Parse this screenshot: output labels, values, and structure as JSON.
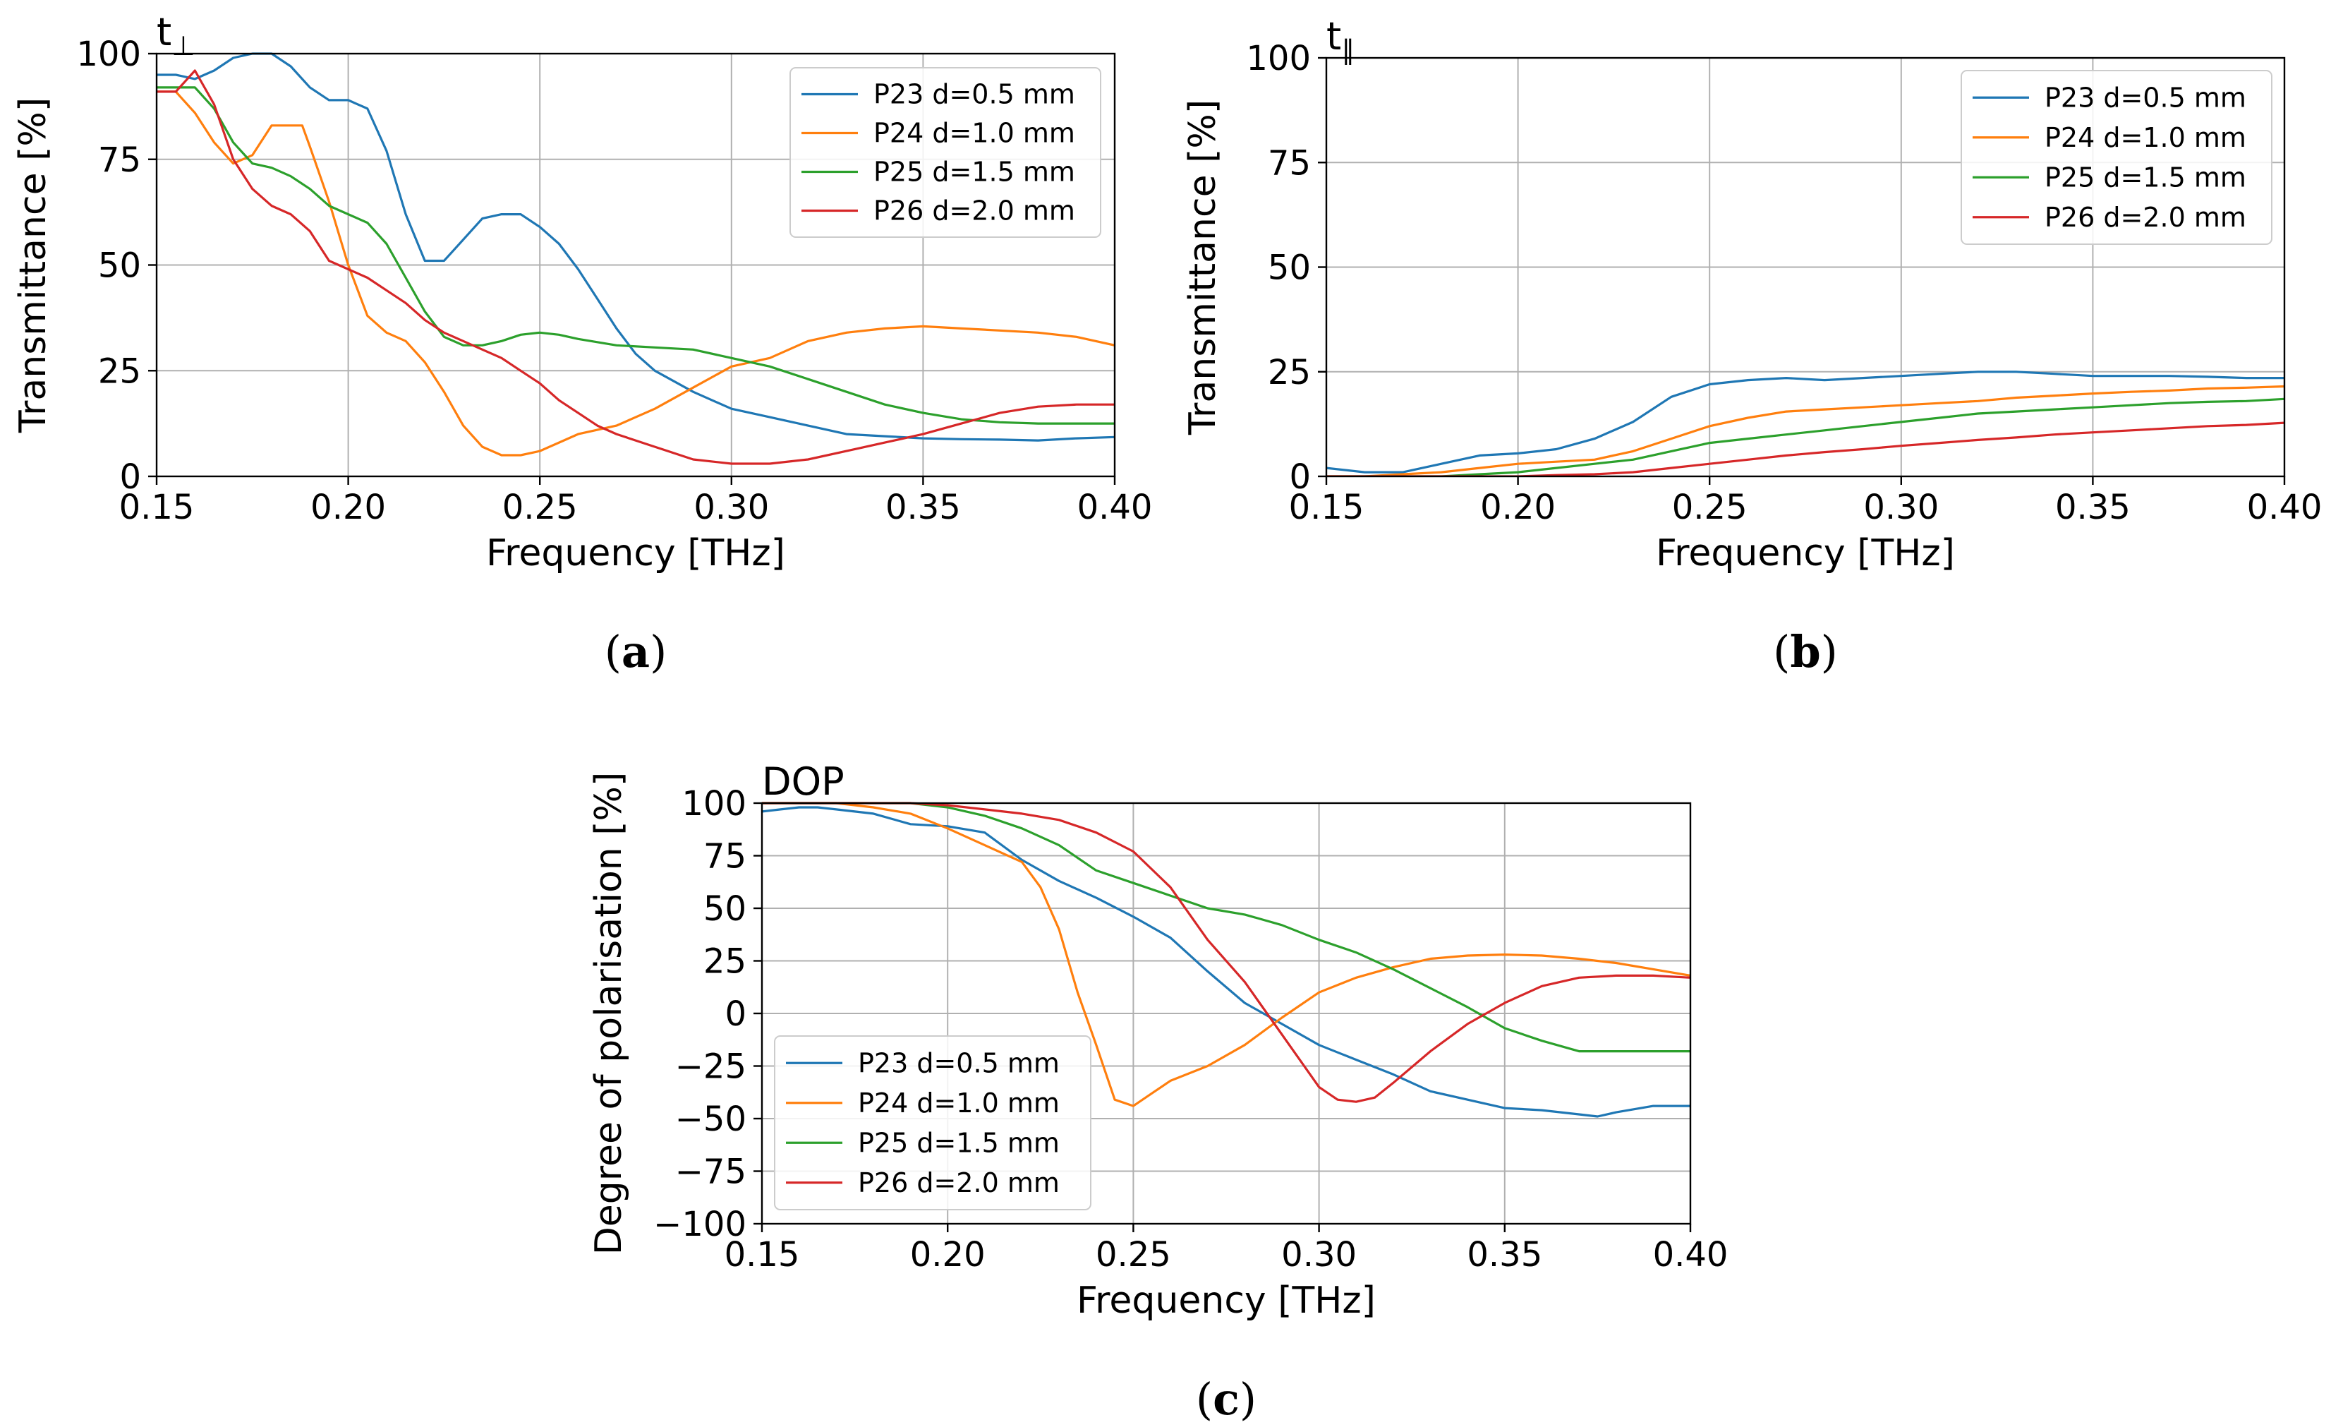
{
  "chart_data": [
    {
      "panel": "a",
      "caption_letter": "a",
      "type": "line",
      "title_base": "t",
      "title_subscript": "⊥",
      "xlabel": "Frequency [THz]",
      "ylabel": "Transmittance [%]",
      "xlim": [
        0.15,
        0.4
      ],
      "ylim": [
        0,
        100
      ],
      "xticks": [
        0.15,
        0.2,
        0.25,
        0.3,
        0.35,
        0.4
      ],
      "xtick_labels": [
        "0.15",
        "0.20",
        "0.25",
        "0.30",
        "0.35",
        "0.40"
      ],
      "yticks": [
        0,
        25,
        50,
        75,
        100
      ],
      "ytick_labels": [
        "0",
        "25",
        "50",
        "75",
        "100"
      ],
      "grid": true,
      "legend_position": "top-right",
      "series": [
        {
          "name": "P23 d=0.5 mm",
          "color": "#1f77b4",
          "x": [
            0.15,
            0.155,
            0.16,
            0.165,
            0.17,
            0.175,
            0.18,
            0.185,
            0.19,
            0.195,
            0.2,
            0.205,
            0.21,
            0.215,
            0.22,
            0.225,
            0.23,
            0.235,
            0.24,
            0.245,
            0.25,
            0.255,
            0.26,
            0.265,
            0.27,
            0.275,
            0.28,
            0.29,
            0.3,
            0.31,
            0.32,
            0.33,
            0.34,
            0.35,
            0.36,
            0.37,
            0.38,
            0.39,
            0.4
          ],
          "y": [
            95,
            95,
            94,
            96,
            99,
            100,
            100,
            97,
            92,
            89,
            89,
            87,
            77,
            62,
            51,
            51,
            56,
            61,
            62,
            62,
            59,
            55,
            49,
            42,
            35,
            29,
            25,
            20,
            16,
            14,
            12,
            10,
            9.5,
            9,
            8.8,
            8.7,
            8.5,
            9,
            9.3
          ]
        },
        {
          "name": "P24 d=1.0 mm",
          "color": "#ff7f0e",
          "x": [
            0.15,
            0.155,
            0.16,
            0.165,
            0.17,
            0.175,
            0.18,
            0.185,
            0.188,
            0.19,
            0.195,
            0.2,
            0.205,
            0.21,
            0.215,
            0.22,
            0.225,
            0.23,
            0.235,
            0.24,
            0.245,
            0.25,
            0.255,
            0.26,
            0.27,
            0.28,
            0.29,
            0.3,
            0.31,
            0.32,
            0.33,
            0.34,
            0.35,
            0.36,
            0.37,
            0.38,
            0.39,
            0.4
          ],
          "y": [
            91,
            91,
            86,
            79,
            74,
            76,
            83,
            83,
            83,
            78,
            65,
            50,
            38,
            34,
            32,
            27,
            20,
            12,
            7,
            5,
            5,
            6,
            8,
            10,
            12,
            16,
            21,
            26,
            28,
            32,
            34,
            35,
            35.5,
            35,
            34.5,
            34,
            33,
            31
          ]
        },
        {
          "name": "P25 d=1.5 mm",
          "color": "#2ca02c",
          "x": [
            0.15,
            0.155,
            0.16,
            0.165,
            0.17,
            0.175,
            0.18,
            0.185,
            0.19,
            0.195,
            0.2,
            0.205,
            0.21,
            0.215,
            0.22,
            0.225,
            0.23,
            0.235,
            0.24,
            0.245,
            0.25,
            0.255,
            0.26,
            0.27,
            0.28,
            0.29,
            0.3,
            0.31,
            0.32,
            0.33,
            0.34,
            0.35,
            0.36,
            0.37,
            0.38,
            0.39,
            0.4
          ],
          "y": [
            92,
            92,
            92,
            87,
            79,
            74,
            73,
            71,
            68,
            64,
            62,
            60,
            55,
            47,
            39,
            33,
            31,
            31,
            32,
            33.5,
            34,
            33.5,
            32.5,
            31,
            30.5,
            30,
            28,
            26,
            23,
            20,
            17,
            15,
            13.5,
            12.8,
            12.5,
            12.5,
            12.5
          ]
        },
        {
          "name": "P26 d=2.0 mm",
          "color": "#d62728",
          "x": [
            0.15,
            0.155,
            0.16,
            0.165,
            0.17,
            0.175,
            0.18,
            0.185,
            0.19,
            0.195,
            0.2,
            0.205,
            0.21,
            0.215,
            0.22,
            0.225,
            0.23,
            0.235,
            0.24,
            0.245,
            0.25,
            0.255,
            0.26,
            0.265,
            0.27,
            0.28,
            0.29,
            0.3,
            0.31,
            0.32,
            0.33,
            0.34,
            0.35,
            0.36,
            0.37,
            0.38,
            0.39,
            0.4
          ],
          "y": [
            91,
            91,
            96,
            88,
            75,
            68,
            64,
            62,
            58,
            51,
            49,
            47,
            44,
            41,
            37,
            34,
            32,
            30,
            28,
            25,
            22,
            18,
            15,
            12,
            10,
            7,
            4,
            3,
            3,
            4,
            6,
            8,
            10,
            12.5,
            15,
            16.5,
            17,
            17
          ]
        }
      ]
    },
    {
      "panel": "b",
      "caption_letter": "b",
      "type": "line",
      "title_base": "t",
      "title_subscript": "∥",
      "xlabel": "Frequency [THz]",
      "ylabel": "Transmittance [%]",
      "xlim": [
        0.15,
        0.4
      ],
      "ylim": [
        0,
        100
      ],
      "xticks": [
        0.15,
        0.2,
        0.25,
        0.3,
        0.35,
        0.4
      ],
      "xtick_labels": [
        "0.15",
        "0.20",
        "0.25",
        "0.30",
        "0.35",
        "0.40"
      ],
      "yticks": [
        0,
        25,
        50,
        75,
        100
      ],
      "ytick_labels": [
        "0",
        "25",
        "50",
        "75",
        "100"
      ],
      "grid": true,
      "legend_position": "top-right",
      "series": [
        {
          "name": "P23 d=0.5 mm",
          "color": "#1f77b4",
          "x": [
            0.15,
            0.16,
            0.17,
            0.18,
            0.19,
            0.2,
            0.21,
            0.22,
            0.23,
            0.24,
            0.25,
            0.26,
            0.27,
            0.28,
            0.29,
            0.3,
            0.31,
            0.32,
            0.33,
            0.34,
            0.35,
            0.36,
            0.37,
            0.38,
            0.39,
            0.4
          ],
          "y": [
            2,
            1,
            1,
            3,
            5,
            5.5,
            6.5,
            9,
            13,
            19,
            22,
            23,
            23.5,
            23,
            23.5,
            24,
            24.5,
            25,
            25,
            24.5,
            24,
            24,
            24,
            23.8,
            23.5,
            23.5
          ]
        },
        {
          "name": "P24 d=1.0 mm",
          "color": "#ff7f0e",
          "x": [
            0.15,
            0.16,
            0.17,
            0.18,
            0.19,
            0.2,
            0.21,
            0.22,
            0.23,
            0.24,
            0.25,
            0.26,
            0.27,
            0.28,
            0.29,
            0.3,
            0.31,
            0.32,
            0.33,
            0.34,
            0.35,
            0.36,
            0.37,
            0.38,
            0.39,
            0.4
          ],
          "y": [
            0,
            0,
            0.5,
            1,
            2,
            3,
            3.5,
            4,
            6,
            9,
            12,
            14,
            15.5,
            16,
            16.5,
            17,
            17.5,
            18,
            18.8,
            19.3,
            19.8,
            20.2,
            20.5,
            21,
            21.2,
            21.5
          ]
        },
        {
          "name": "P25 d=1.5 mm",
          "color": "#2ca02c",
          "x": [
            0.15,
            0.16,
            0.17,
            0.18,
            0.19,
            0.2,
            0.21,
            0.22,
            0.23,
            0.24,
            0.25,
            0.26,
            0.27,
            0.28,
            0.29,
            0.3,
            0.31,
            0.32,
            0.33,
            0.34,
            0.35,
            0.36,
            0.37,
            0.38,
            0.39,
            0.4
          ],
          "y": [
            0,
            0,
            0,
            0,
            0.5,
            1,
            2,
            3,
            4,
            6,
            8,
            9,
            10,
            11,
            12,
            13,
            14,
            15,
            15.5,
            16,
            16.5,
            17,
            17.5,
            17.8,
            18,
            18.5
          ]
        },
        {
          "name": "P26 d=2.0 mm",
          "color": "#d62728",
          "x": [
            0.15,
            0.16,
            0.17,
            0.18,
            0.19,
            0.2,
            0.21,
            0.22,
            0.23,
            0.24,
            0.25,
            0.26,
            0.27,
            0.28,
            0.29,
            0.3,
            0.31,
            0.32,
            0.33,
            0.34,
            0.35,
            0.36,
            0.37,
            0.38,
            0.39,
            0.4
          ],
          "y": [
            0,
            0,
            0,
            0,
            0,
            0,
            0.3,
            0.5,
            1,
            2,
            3,
            4,
            5,
            5.8,
            6.5,
            7.3,
            8,
            8.7,
            9.3,
            10,
            10.5,
            11,
            11.5,
            12,
            12.3,
            12.8
          ]
        }
      ]
    },
    {
      "panel": "c",
      "caption_letter": "c",
      "type": "line",
      "title_base": "DOP",
      "title_subscript": "",
      "xlabel": "Frequency [THz]",
      "ylabel": "Degree of polarisation [%]",
      "xlim": [
        0.15,
        0.4
      ],
      "ylim": [
        -100,
        100
      ],
      "xticks": [
        0.15,
        0.2,
        0.25,
        0.3,
        0.35,
        0.4
      ],
      "xtick_labels": [
        "0.15",
        "0.20",
        "0.25",
        "0.30",
        "0.35",
        "0.40"
      ],
      "yticks": [
        -100,
        -75,
        -50,
        -25,
        0,
        25,
        50,
        75,
        100
      ],
      "ytick_labels": [
        "−100",
        "−75",
        "−50",
        "−25",
        "0",
        "25",
        "50",
        "75",
        "100"
      ],
      "grid": true,
      "legend_position": "bottom-left",
      "series": [
        {
          "name": "P23 d=0.5 mm",
          "color": "#1f77b4",
          "x": [
            0.15,
            0.155,
            0.16,
            0.165,
            0.17,
            0.18,
            0.19,
            0.2,
            0.21,
            0.22,
            0.23,
            0.24,
            0.25,
            0.26,
            0.27,
            0.28,
            0.29,
            0.3,
            0.31,
            0.32,
            0.33,
            0.34,
            0.35,
            0.36,
            0.37,
            0.375,
            0.38,
            0.39,
            0.4
          ],
          "y": [
            96,
            97,
            98,
            98,
            97,
            95,
            90,
            89,
            86,
            73,
            63,
            55,
            46,
            36,
            20,
            5,
            -5,
            -15,
            -22,
            -29,
            -37,
            -41,
            -45,
            -46,
            -48,
            -49,
            -47,
            -44,
            -44
          ]
        },
        {
          "name": "P24 d=1.0 mm",
          "color": "#ff7f0e",
          "x": [
            0.15,
            0.16,
            0.17,
            0.18,
            0.19,
            0.2,
            0.21,
            0.22,
            0.225,
            0.23,
            0.235,
            0.24,
            0.245,
            0.25,
            0.255,
            0.26,
            0.27,
            0.28,
            0.29,
            0.3,
            0.31,
            0.32,
            0.33,
            0.34,
            0.35,
            0.36,
            0.37,
            0.38,
            0.39,
            0.4
          ],
          "y": [
            100,
            100,
            100,
            98,
            95,
            88,
            80,
            72,
            60,
            40,
            10,
            -15,
            -41,
            -44,
            -38,
            -32,
            -25,
            -15,
            -2,
            10,
            17,
            22,
            26,
            27.5,
            28,
            27.5,
            26,
            24,
            21,
            18
          ]
        },
        {
          "name": "P25 d=1.5 mm",
          "color": "#2ca02c",
          "x": [
            0.15,
            0.16,
            0.17,
            0.18,
            0.19,
            0.2,
            0.21,
            0.22,
            0.23,
            0.24,
            0.25,
            0.26,
            0.27,
            0.28,
            0.29,
            0.3,
            0.31,
            0.32,
            0.33,
            0.34,
            0.35,
            0.36,
            0.37,
            0.38,
            0.39,
            0.4
          ],
          "y": [
            100,
            100,
            100,
            100,
            100,
            98,
            94,
            88,
            80,
            68,
            62,
            56,
            50,
            47,
            42,
            35,
            29,
            21,
            12,
            3,
            -7,
            -13,
            -18,
            -18,
            -18,
            -18
          ]
        },
        {
          "name": "P26 d=2.0 mm",
          "color": "#d62728",
          "x": [
            0.15,
            0.16,
            0.17,
            0.18,
            0.19,
            0.2,
            0.21,
            0.22,
            0.23,
            0.24,
            0.25,
            0.26,
            0.27,
            0.28,
            0.29,
            0.3,
            0.305,
            0.31,
            0.315,
            0.32,
            0.33,
            0.34,
            0.35,
            0.36,
            0.37,
            0.38,
            0.39,
            0.4
          ],
          "y": [
            100,
            100,
            100,
            100,
            100,
            99,
            97,
            95,
            92,
            86,
            77,
            60,
            35,
            15,
            -10,
            -35,
            -41,
            -42,
            -40,
            -33,
            -18,
            -5,
            5,
            13,
            17,
            18,
            18,
            17
          ]
        }
      ]
    }
  ]
}
